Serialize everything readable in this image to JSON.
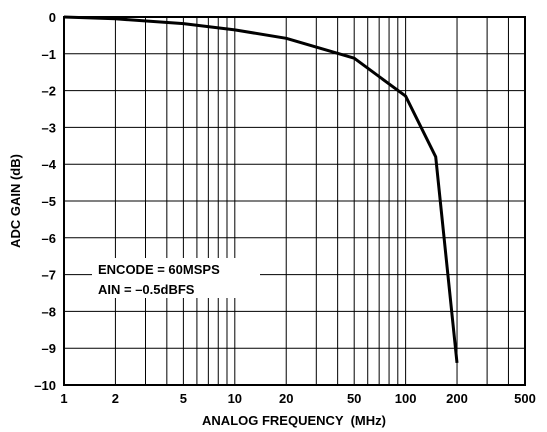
{
  "chart_data": {
    "type": "line",
    "title": "",
    "xlabel": "ANALOG FREQUENCY  (MHz)",
    "ylabel": "ADC GAIN (dB)",
    "x_scale": "log",
    "xlim": [
      1,
      500
    ],
    "ylim": [
      -10,
      0
    ],
    "grid": true,
    "x_ticks": [
      1,
      2,
      5,
      10,
      20,
      50,
      100,
      200,
      500
    ],
    "x_tick_labels": [
      "1",
      "2",
      "5",
      "10",
      "20",
      "50",
      "100",
      "200",
      "500"
    ],
    "y_ticks": [
      0,
      -1,
      -2,
      -3,
      -4,
      -5,
      -6,
      -7,
      -8,
      -9,
      -10
    ],
    "y_tick_labels": [
      "0",
      "–1",
      "–2",
      "–3",
      "–4",
      "–5",
      "–6",
      "–7",
      "–8",
      "–9",
      "–10"
    ],
    "series": [
      {
        "x": [
          1,
          2,
          5,
          10,
          20,
          50,
          100,
          150,
          200
        ],
        "y": [
          0,
          -0.05,
          -0.18,
          -0.35,
          -0.58,
          -1.12,
          -2.15,
          -3.8,
          -9.4
        ]
      }
    ],
    "annotations": [
      "ENCODE = 60MSPS",
      "AIN = –0.5dBFS"
    ]
  }
}
